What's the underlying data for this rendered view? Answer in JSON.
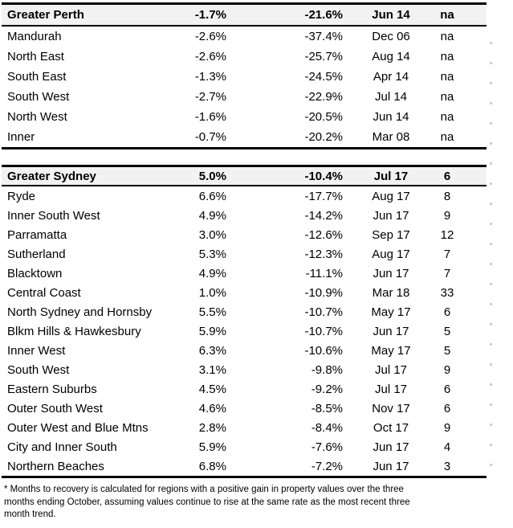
{
  "style_tokens": {
    "header_bg": "#f2f2f2",
    "border_color": "#000000",
    "text_color": "#000000",
    "artifact_color": "#cfcfcf"
  },
  "sections": [
    {
      "header": [
        "Greater Perth",
        "-1.7%",
        "-21.6%",
        "Jun 14",
        "na"
      ],
      "rows": [
        [
          "Mandurah",
          "-2.6%",
          "-37.4%",
          "Dec 06",
          "na"
        ],
        [
          "North East",
          "-2.6%",
          "-25.7%",
          "Aug 14",
          "na"
        ],
        [
          "South East",
          "-1.3%",
          "-24.5%",
          "Apr 14",
          "na"
        ],
        [
          "South West",
          "-2.7%",
          "-22.9%",
          "Jul 14",
          "na"
        ],
        [
          "North West",
          "-1.6%",
          "-20.5%",
          "Jun 14",
          "na"
        ],
        [
          "Inner",
          "-0.7%",
          "-20.2%",
          "Mar 08",
          "na"
        ]
      ]
    },
    {
      "header": [
        "Greater Sydney",
        "5.0%",
        "-10.4%",
        "Jul 17",
        "6"
      ],
      "rows": [
        [
          "Ryde",
          "6.6%",
          "-17.7%",
          "Aug 17",
          "8"
        ],
        [
          "Inner South West",
          "4.9%",
          "-14.2%",
          "Jun 17",
          "9"
        ],
        [
          "Parramatta",
          "3.0%",
          "-12.6%",
          "Sep 17",
          "12"
        ],
        [
          "Sutherland",
          "5.3%",
          "-12.3%",
          "Aug 17",
          "7"
        ],
        [
          "Blacktown",
          "4.9%",
          "-11.1%",
          "Jun 17",
          "7"
        ],
        [
          "Central Coast",
          "1.0%",
          "-10.9%",
          "Mar 18",
          "33"
        ],
        [
          "North Sydney and Hornsby",
          "5.5%",
          "-10.7%",
          "May 17",
          "6"
        ],
        [
          "Blkm Hills & Hawkesbury",
          "5.9%",
          "-10.7%",
          "Jun 17",
          "5"
        ],
        [
          "Inner West",
          "6.3%",
          "-10.6%",
          "May 17",
          "5"
        ],
        [
          "South West",
          "3.1%",
          "-9.8%",
          "Jul 17",
          "9"
        ],
        [
          "Eastern Suburbs",
          "4.5%",
          "-9.2%",
          "Jul 17",
          "6"
        ],
        [
          "Outer South West",
          "4.6%",
          "-8.5%",
          "Nov 17",
          "6"
        ],
        [
          "Outer West and Blue Mtns",
          "2.8%",
          "-8.4%",
          "Oct 17",
          "9"
        ],
        [
          "City and Inner South",
          "5.9%",
          "-7.6%",
          "Jun 17",
          "4"
        ],
        [
          "Northern Beaches",
          "6.8%",
          "-7.2%",
          "Jun 17",
          "3"
        ]
      ]
    }
  ],
  "footnote": {
    "lines": [
      "* Months to recovery is calculated for regions with a positive gain in property values over the three",
      "months ending October, assuming values continue to rise at the same rate as the most recent three",
      "month trend."
    ]
  }
}
